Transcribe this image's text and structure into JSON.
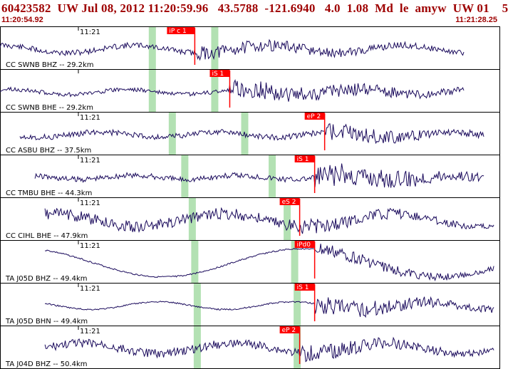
{
  "header": {
    "title": "60423582  UW Jul 08, 2012 11:20:59.96   43.5788  -121.6940   4.0  1.08  Md  le  amyw  UW 01    5",
    "time_start": "11:20:54.92",
    "time_end": "11:21:28.25"
  },
  "colors": {
    "header_text": "#9e0000",
    "trace": "#1a0a5c",
    "pick_box": "#ff0000",
    "pick_text": "#ffffff",
    "window_shade": "#a6dca6",
    "panel_border": "#000000"
  },
  "channels": [
    {
      "label": "CC SWNB BHZ -- 29.2km",
      "tick": "11:21",
      "pick": "iP c 1",
      "amp": 10,
      "noise": 4,
      "onset": 0.39,
      "end": 0.93,
      "start": 0.0,
      "wave": 0.6,
      "shade": [
        0.305,
        0.43
      ],
      "seed": 11
    },
    {
      "label": "CC SWNB BHE -- 29.2km",
      "tick": "",
      "pick": "iS 1",
      "amp": 14,
      "noise": 3,
      "onset": 0.46,
      "end": 0.93,
      "start": 0.0,
      "wave": 0.4,
      "shade": [
        0.305,
        0.43
      ],
      "seed": 23
    },
    {
      "label": "CC ASBU BHZ -- 37.5km",
      "tick": "11:21",
      "pick": "eP 2",
      "amp": 13,
      "noise": 4,
      "onset": 0.65,
      "end": 0.97,
      "start": 0.04,
      "wave": 0.4,
      "shade": [
        0.345,
        0.49
      ],
      "seed": 37
    },
    {
      "label": "CC TMBU BHE -- 44.3km",
      "tick": "11:21",
      "pick": "iS 1",
      "amp": 19,
      "noise": 4,
      "onset": 0.63,
      "end": 0.97,
      "start": 0.07,
      "wave": 0.3,
      "shade": [
        0.37,
        0.545
      ],
      "seed": 41
    },
    {
      "label": "CC CIHL BHE -- 47.9km",
      "tick": "11:21",
      "pick": "eS 2",
      "amp": 11,
      "noise": 8,
      "onset": 0.6,
      "end": 0.99,
      "start": 0.09,
      "wave": 1.0,
      "shade": [
        0.385,
        0.575
      ],
      "seed": 53
    },
    {
      "label": "TA J05D BHZ -- 49.4km",
      "tick": "11:21",
      "pick": "iPd0",
      "amp": 10,
      "noise": 1,
      "onset": 0.63,
      "end": 0.99,
      "start": 0.09,
      "wave": 2.2,
      "shade": [
        0.39,
        0.59
      ],
      "seed": 67
    },
    {
      "label": "TA J05D BHN -- 49.4km",
      "tick": "11:21",
      "pick": "iS 1",
      "amp": 14,
      "noise": 1,
      "onset": 0.63,
      "end": 0.99,
      "start": 0.09,
      "wave": 0.6,
      "shade": [
        0.395,
        0.595
      ],
      "seed": 79
    },
    {
      "label": "TA J04D BHZ -- 50.4km",
      "tick": "11:21",
      "pick": "eP 2",
      "amp": 12,
      "noise": 6,
      "onset": 0.6,
      "end": 0.99,
      "start": 0.09,
      "wave": 0.8,
      "shade": [
        0.395,
        0.595
      ],
      "seed": 83
    }
  ]
}
